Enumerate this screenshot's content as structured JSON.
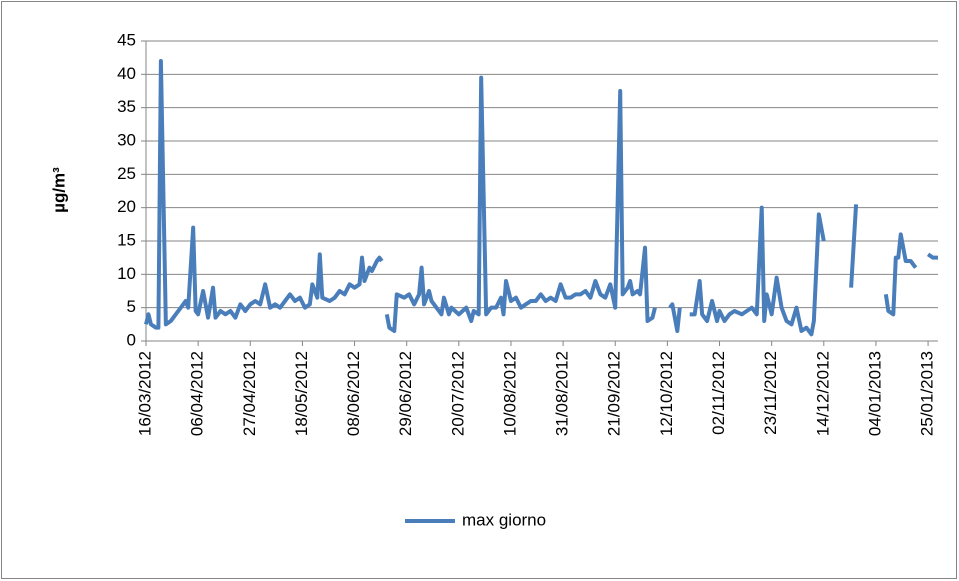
{
  "chart_data": {
    "type": "line",
    "y_label": "µg/m³",
    "x": [
      "16/03/2012",
      "17/03/2012",
      "18/03/2012",
      "20/03/2012",
      "21/03/2012",
      "22/03/2012",
      "24/03/2012",
      "26/03/2012",
      "28/03/2012",
      "30/03/2012",
      "01/04/2012",
      "02/04/2012",
      "04/04/2012",
      "05/04/2012",
      "06/04/2012",
      "08/04/2012",
      "10/04/2012",
      "12/04/2012",
      "13/04/2012",
      "15/04/2012",
      "17/04/2012",
      "19/04/2012",
      "21/04/2012",
      "23/04/2012",
      "25/04/2012",
      "27/04/2012",
      "29/04/2012",
      "01/05/2012",
      "03/05/2012",
      "05/05/2012",
      "07/05/2012",
      "09/05/2012",
      "11/05/2012",
      "13/05/2012",
      "15/05/2012",
      "17/05/2012",
      "19/05/2012",
      "21/05/2012",
      "22/05/2012",
      "24/05/2012",
      "25/05/2012",
      "26/05/2012",
      "29/05/2012",
      "31/05/2012",
      "02/06/2012",
      "04/06/2012",
      "06/06/2012",
      "08/06/2012",
      "10/06/2012",
      "11/06/2012",
      "12/06/2012",
      "14/06/2012",
      "15/06/2012",
      "17/06/2012",
      "18/06/2012",
      "19/06/2012",
      "20/06/2012",
      "21/06/2012",
      "22/06/2012",
      "24/06/2012",
      "25/06/2012",
      "28/06/2012",
      "30/06/2012",
      "02/07/2012",
      "04/07/2012",
      "05/07/2012",
      "06/07/2012",
      "08/07/2012",
      "09/07/2012",
      "11/07/2012",
      "13/07/2012",
      "14/07/2012",
      "16/07/2012",
      "17/07/2012",
      "20/07/2012",
      "23/07/2012",
      "25/07/2012",
      "26/07/2012",
      "28/07/2012",
      "29/07/2012",
      "31/07/2012",
      "02/08/2012",
      "04/08/2012",
      "06/08/2012",
      "07/08/2012",
      "08/08/2012",
      "10/08/2012",
      "12/08/2012",
      "14/08/2012",
      "16/08/2012",
      "18/08/2012",
      "20/08/2012",
      "22/08/2012",
      "24/08/2012",
      "26/08/2012",
      "28/08/2012",
      "30/08/2012",
      "01/09/2012",
      "03/09/2012",
      "05/09/2012",
      "07/09/2012",
      "09/09/2012",
      "11/09/2012",
      "13/09/2012",
      "15/09/2012",
      "17/09/2012",
      "19/09/2012",
      "21/09/2012",
      "23/09/2012",
      "24/09/2012",
      "26/09/2012",
      "27/09/2012",
      "28/09/2012",
      "30/09/2012",
      "01/10/2012",
      "03/10/2012",
      "04/10/2012",
      "06/10/2012",
      "07/10/2012",
      "09/10/2012",
      "13/10/2012",
      "14/10/2012",
      "16/10/2012",
      "17/10/2012",
      "19/10/2012",
      "21/10/2012",
      "23/10/2012",
      "25/10/2012",
      "26/10/2012",
      "28/10/2012",
      "30/10/2012",
      "01/11/2012",
      "02/11/2012",
      "04/11/2012",
      "06/11/2012",
      "08/11/2012",
      "11/11/2012",
      "13/11/2012",
      "15/11/2012",
      "17/11/2012",
      "19/11/2012",
      "20/11/2012",
      "21/11/2012",
      "23/11/2012",
      "25/11/2012",
      "27/11/2012",
      "29/11/2012",
      "01/12/2012",
      "03/12/2012",
      "05/12/2012",
      "07/12/2012",
      "09/12/2012",
      "10/12/2012",
      "12/12/2012",
      "14/12/2012",
      "16/12/2012",
      "25/12/2012",
      "27/12/2012",
      "29/12/2012",
      "08/01/2013",
      "09/01/2013",
      "11/01/2013",
      "12/01/2013",
      "13/01/2013",
      "14/01/2013",
      "16/01/2013",
      "18/01/2013",
      "20/01/2013",
      "22/01/2013",
      "25/01/2013",
      "27/01/2013",
      "29/01/2013"
    ],
    "series": [
      {
        "name": "max giorno",
        "color": "#4a7ebb",
        "values": [
          2.5,
          4,
          2.5,
          2,
          2,
          42,
          2.5,
          3,
          4,
          5,
          6,
          5,
          17,
          4.5,
          4,
          7.5,
          3.5,
          8,
          3.5,
          4.5,
          4,
          4.5,
          3.5,
          5.5,
          4.5,
          5.5,
          6,
          5.5,
          8.5,
          5,
          5.5,
          5,
          6,
          7,
          6,
          6.5,
          5,
          5.5,
          8.5,
          6.5,
          13,
          6.5,
          6,
          6.5,
          7.5,
          7,
          8.5,
          8,
          8.5,
          12.5,
          9,
          11,
          10.5,
          12,
          12.5,
          12,
          null,
          4,
          2,
          1.5,
          7,
          6.5,
          7,
          5.5,
          7,
          11,
          5.5,
          7.5,
          6,
          5,
          4,
          6.5,
          4,
          5,
          4,
          5,
          3,
          4.5,
          4,
          39.5,
          4,
          5,
          5,
          6.5,
          4,
          9,
          6,
          6.5,
          5,
          5.5,
          6,
          6,
          7,
          6,
          6.5,
          6,
          8.5,
          6.5,
          6.5,
          7,
          7,
          7.5,
          6.5,
          9,
          7,
          6.5,
          8.5,
          5,
          37.5,
          7,
          8,
          9,
          7,
          7.5,
          7,
          14,
          3,
          3.5,
          5,
          null,
          5,
          5.5,
          1.5,
          5,
          null,
          4,
          4,
          9,
          4,
          3,
          6,
          3,
          4.5,
          3,
          4,
          4.5,
          4,
          4.5,
          5,
          4,
          20,
          3,
          7,
          4,
          9.5,
          5,
          3,
          2.5,
          5,
          1.5,
          2,
          1,
          3,
          19,
          15,
          null,
          8,
          20.5,
          null,
          7,
          4.5,
          4,
          12.5,
          12.5,
          16,
          12,
          12,
          11,
          null,
          13,
          12.5,
          12.5
        ]
      }
    ],
    "xlim": [
      "16/03/2012",
      "29/01/2013"
    ],
    "xticks": [
      "16/03/2012",
      "06/04/2012",
      "27/04/2012",
      "18/05/2012",
      "08/06/2012",
      "29/06/2012",
      "20/07/2012",
      "10/08/2012",
      "31/08/2012",
      "21/09/2012",
      "12/10/2012",
      "02/11/2012",
      "23/11/2012",
      "14/12/2012",
      "04/01/2013",
      "25/01/2013"
    ],
    "ylim": [
      0,
      45
    ],
    "yticks": [
      0,
      5,
      10,
      15,
      20,
      25,
      30,
      35,
      40,
      45
    ],
    "grid": true,
    "legend": "bottom"
  }
}
